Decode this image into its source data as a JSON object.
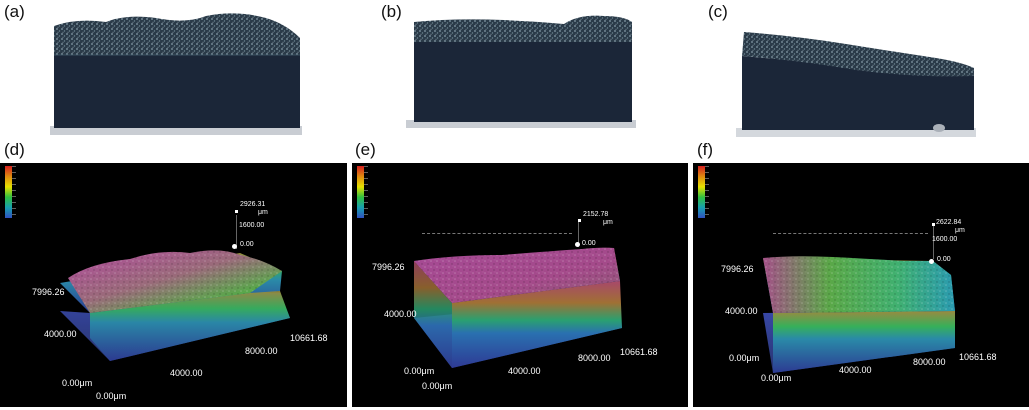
{
  "photos": {
    "a": {
      "label": "(a)"
    },
    "b": {
      "label": "(b)"
    },
    "c": {
      "label": "(c)"
    }
  },
  "panels": {
    "d": {
      "label": "(d)",
      "max_height": "2926.31",
      "unit": "μm",
      "mid_height": "1600.00",
      "zero": "0.00",
      "y_extent": "7996.26",
      "y_mid": "4000.00",
      "x_extent": "10661.68",
      "x_mid1": "8000.00",
      "x_mid2": "4000.00",
      "origin_y": "0.00μm",
      "origin_x": "0.00μm"
    },
    "e": {
      "label": "(e)",
      "max_height": "2152.78",
      "unit": "μm",
      "zero": "0.00",
      "y_extent": "7996.26",
      "y_mid": "4000.00",
      "x_extent": "10661.68",
      "x_mid1": "8000.00",
      "x_mid2": "4000.00",
      "origin_y": "0.00μm",
      "origin_x": "0.00μm"
    },
    "f": {
      "label": "(f)",
      "max_height": "2622.84",
      "unit": "μm",
      "mid_height": "1600.00",
      "zero": "0.00",
      "y_extent": "7996.26",
      "y_mid": "4000.00",
      "x_extent": "10661.68",
      "x_mid1": "8000.00",
      "x_mid2": "4000.00",
      "origin_y": "0.00μm",
      "origin_x": "0.00μm"
    }
  },
  "colors": {
    "background": "#000000",
    "surface_top": "#b04aa0",
    "side_wall": "#3a4aa0"
  }
}
